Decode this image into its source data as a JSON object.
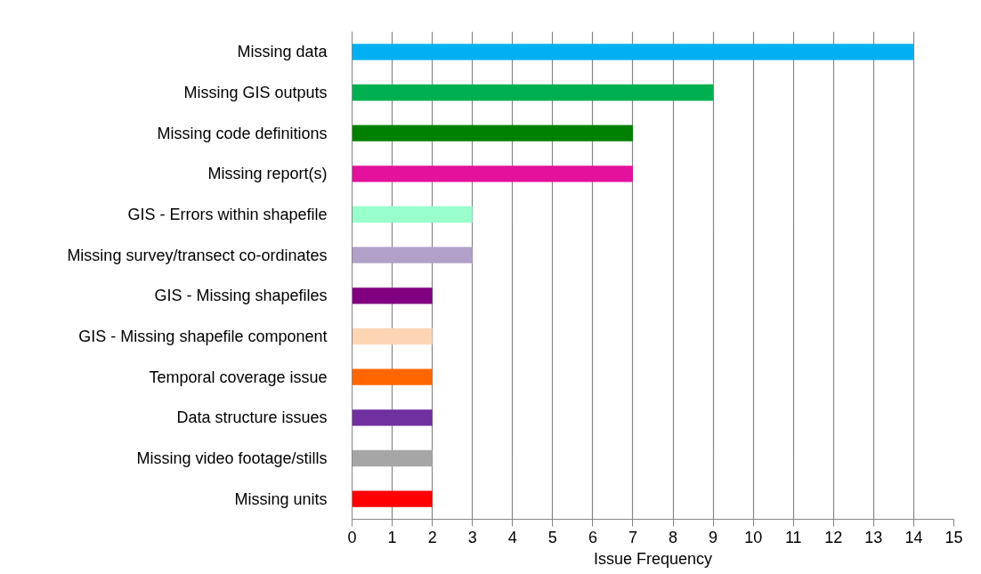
{
  "chart_data": {
    "type": "bar",
    "orientation": "horizontal",
    "xlabel": "Issue Frequency",
    "categories": [
      "Missing data",
      "Missing GIS outputs",
      "Missing code definitions",
      "Missing report(s)",
      "GIS - Errors within shapefile",
      "Missing survey/transect co-ordinates",
      "GIS - Missing shapefiles",
      "GIS - Missing shapefile component",
      "Temporal coverage issue",
      "Data structure issues",
      "Missing video footage/stills",
      "Missing units"
    ],
    "values": [
      14,
      9,
      7,
      7,
      3,
      3,
      2,
      2,
      2,
      2,
      2,
      2
    ],
    "colors": [
      "#00b0f0",
      "#00b050",
      "#008000",
      "#e3119b",
      "#99ffcc",
      "#b1a0c7",
      "#800080",
      "#fcd5b4",
      "#ff6600",
      "#7030a0",
      "#a6a6a6",
      "#ff0000"
    ],
    "xlim": [
      0,
      15
    ],
    "xticks": [
      0,
      1,
      2,
      3,
      4,
      5,
      6,
      7,
      8,
      9,
      10,
      11,
      12,
      13,
      14,
      15
    ],
    "grid": "x"
  }
}
